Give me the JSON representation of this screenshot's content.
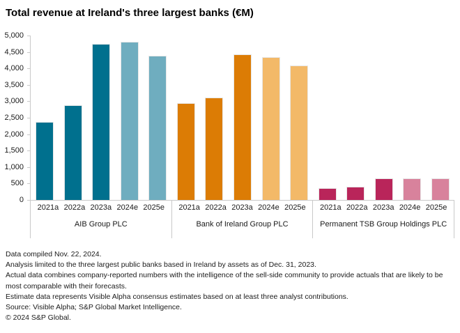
{
  "chart_data": {
    "type": "bar",
    "title": "Total revenue at Ireland's three largest banks (€M)",
    "ylim": [
      0,
      5000
    ],
    "y_tick_step": 500,
    "y_tick_labels": [
      "5,000",
      "4,500",
      "4,000",
      "3,500",
      "3,000",
      "2,500",
      "2,000",
      "1,500",
      "1,000",
      "500",
      "0"
    ],
    "categories": [
      "2021a",
      "2022a",
      "2023a",
      "2024e",
      "2025e"
    ],
    "grid": "off",
    "legend": "none",
    "groups": [
      {
        "name": "AIB Group PLC",
        "color_actual": "#00708E",
        "color_estimate": "#6FADBF",
        "values": [
          2370,
          2880,
          4750,
          4800,
          4390
        ]
      },
      {
        "name": "Bank of Ireland Group PLC",
        "color_actual": "#DC7C05",
        "color_estimate": "#F3B968",
        "values": [
          2940,
          3110,
          4420,
          4340,
          4080
        ]
      },
      {
        "name": "Permanent TSB Group Holdings PLC",
        "color_actual": "#B9255A",
        "color_estimate": "#D8829C",
        "values": [
          350,
          400,
          660,
          650,
          650
        ]
      }
    ],
    "axis_color": "#c9c9c9"
  },
  "footnotes": {
    "lines": [
      "Data compiled Nov. 22, 2024.",
      "Analysis limited to the three largest public banks based in Ireland by assets as of Dec. 31, 2023.",
      "Actual data combines company-reported numbers with the intelligence of the sell-side community to provide actuals that are likely to be most comparable with their forecasts.",
      "Estimate data represents Visible Alpha consensus estimates based on at least three analyst contributions.",
      "Source: Visible Alpha; S&P Global Market Intelligence.",
      "© 2024 S&P Global."
    ]
  }
}
